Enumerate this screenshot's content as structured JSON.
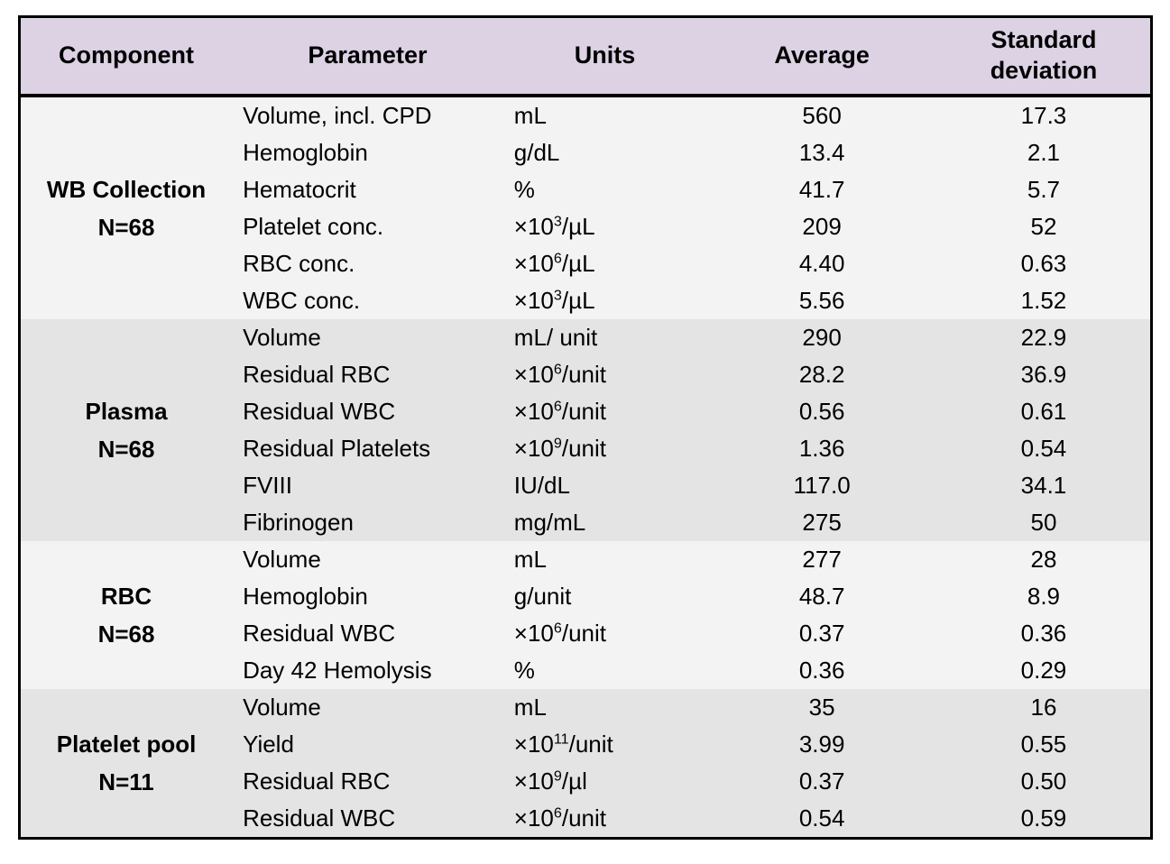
{
  "colors": {
    "header-bg": "#dcd2e4",
    "band-light": "#f3f3f3",
    "band-dark": "#e4e4e4",
    "border": "#000000"
  },
  "header": {
    "columns": [
      "Component",
      "Parameter",
      "Units",
      "Average",
      "Standard deviation"
    ]
  },
  "table": {
    "groups": [
      {
        "component": "WB Collection",
        "n": "N=68",
        "band": "light",
        "rows": [
          {
            "parameter": "Volume, incl. CPD",
            "units": "mL",
            "average": "560",
            "sd": "17.3"
          },
          {
            "parameter": "Hemoglobin",
            "units": "g/dL",
            "average": "13.4",
            "sd": "2.1"
          },
          {
            "parameter": "Hematocrit",
            "units": "%",
            "average": "41.7",
            "sd": "5.7"
          },
          {
            "parameter": "Platelet conc.",
            "units": "×10^{3}/µL",
            "average": "209",
            "sd": "52"
          },
          {
            "parameter": "RBC conc.",
            "units": "×10^{6}/µL",
            "average": "4.40",
            "sd": "0.63"
          },
          {
            "parameter": "WBC conc.",
            "units": "×10^{3}/µL",
            "average": "5.56",
            "sd": "1.52"
          }
        ]
      },
      {
        "component": "Plasma",
        "n": "N=68",
        "band": "dark",
        "rows": [
          {
            "parameter": "Volume",
            "units": "mL/ unit",
            "average": "290",
            "sd": "22.9"
          },
          {
            "parameter": "Residual RBC",
            "units": "×10^{6}/unit",
            "average": "28.2",
            "sd": "36.9"
          },
          {
            "parameter": "Residual WBC",
            "units": "×10^{6}/unit",
            "average": "0.56",
            "sd": "0.61"
          },
          {
            "parameter": "Residual Platelets",
            "units": "×10^{9}/unit",
            "average": "1.36",
            "sd": "0.54"
          },
          {
            "parameter": "FVIII",
            "units": "IU/dL",
            "average": "117.0",
            "sd": "34.1"
          },
          {
            "parameter": "Fibrinogen",
            "units": "mg/mL",
            "average": "275",
            "sd": "50"
          }
        ]
      },
      {
        "component": "RBC",
        "n": "N=68",
        "band": "light",
        "rows": [
          {
            "parameter": "Volume",
            "units": "mL",
            "average": "277",
            "sd": "28"
          },
          {
            "parameter": "Hemoglobin",
            "units": "g/unit",
            "average": "48.7",
            "sd": "8.9"
          },
          {
            "parameter": "Residual WBC",
            "units": "×10^{6}/unit",
            "average": "0.37",
            "sd": "0.36"
          },
          {
            "parameter": "Day 42 Hemolysis",
            "units": "%",
            "average": "0.36",
            "sd": "0.29"
          }
        ]
      },
      {
        "component": "Platelet pool",
        "n": "N=11",
        "band": "dark",
        "rows": [
          {
            "parameter": "Volume",
            "units": "mL",
            "average": "35",
            "sd": "16"
          },
          {
            "parameter": "Yield",
            "units": "×10^{11}/unit",
            "average": "3.99",
            "sd": "0.55"
          },
          {
            "parameter": "Residual RBC",
            "units": "×10^{9}/µl",
            "average": "0.37",
            "sd": "0.50"
          },
          {
            "parameter": "Residual WBC",
            "units": "×10^{6}/unit",
            "average": "0.54",
            "sd": "0.59"
          }
        ]
      }
    ]
  }
}
